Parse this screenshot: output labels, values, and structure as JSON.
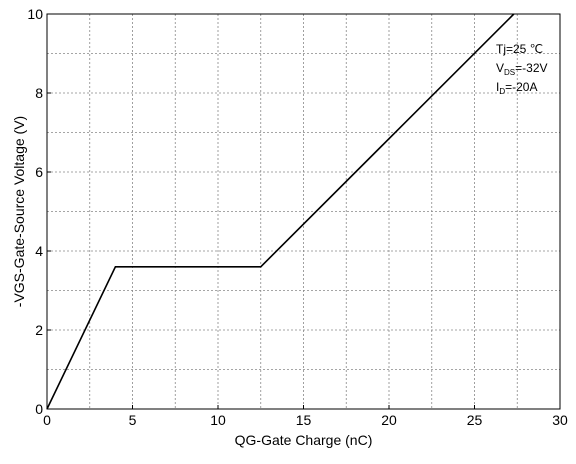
{
  "chart_data": {
    "type": "line",
    "title": "",
    "xlabel": "QG-Gate Charge (nC)",
    "ylabel": "-VGS-Gate-Source Voltage (V)",
    "xlim": [
      0,
      30
    ],
    "ylim": [
      0,
      10
    ],
    "x_ticks": [
      0,
      5,
      10,
      15,
      20,
      25,
      30
    ],
    "y_ticks": [
      0,
      2,
      4,
      6,
      8,
      10
    ],
    "x_minor_step": 2.5,
    "y_minor_step": 1,
    "grid": true,
    "series": [
      {
        "x": [
          0,
          4.0,
          12.5,
          27.3
        ],
        "y": [
          0,
          3.6,
          3.6,
          10
        ]
      }
    ],
    "annotations": {
      "tj": "Tj=25 ℃",
      "vds_main": "V",
      "vds_sub": "DS",
      "vds_value": "=-32V",
      "id_main": "I",
      "id_sub": "D",
      "id_value": "=-20A",
      "placement": "top-right"
    }
  }
}
